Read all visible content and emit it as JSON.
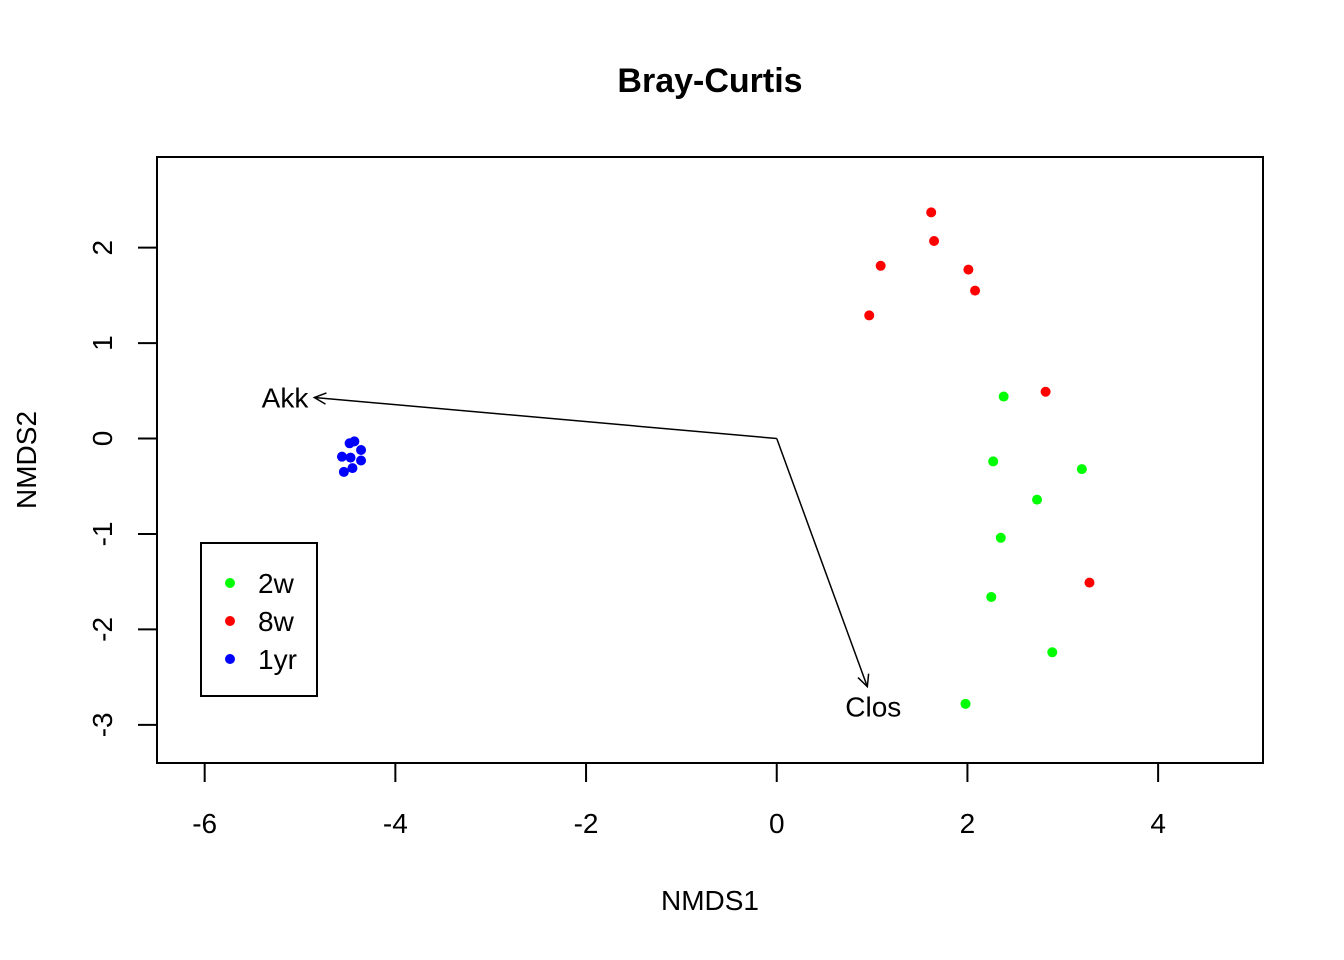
{
  "chart_data": {
    "type": "scatter",
    "title": "Bray-Curtis",
    "xlabel": "NMDS1",
    "ylabel": "NMDS2",
    "xlim": [
      -6.5,
      5.1
    ],
    "ylim": [
      -3.4,
      2.95
    ],
    "xticks": [
      -6,
      -4,
      -2,
      0,
      2,
      4
    ],
    "yticks": [
      -3,
      -2,
      -1,
      0,
      1,
      2
    ],
    "xtick_labels": [
      "-6",
      "-4",
      "-2",
      "0",
      "2",
      "4"
    ],
    "ytick_labels": [
      "-3",
      "-2",
      "-1",
      "0",
      "1",
      "2"
    ],
    "grid": false,
    "legend_position": "bottom-left",
    "series": [
      {
        "name": "2w",
        "color": "#00ff00",
        "points": [
          [
            2.38,
            0.44
          ],
          [
            2.27,
            -0.24
          ],
          [
            3.2,
            -0.32
          ],
          [
            2.73,
            -0.64
          ],
          [
            2.35,
            -1.04
          ],
          [
            2.25,
            -1.66
          ],
          [
            2.89,
            -2.24
          ],
          [
            1.98,
            -2.78
          ]
        ]
      },
      {
        "name": "8w",
        "color": "#ff0000",
        "points": [
          [
            1.62,
            2.37
          ],
          [
            1.65,
            2.07
          ],
          [
            1.09,
            1.81
          ],
          [
            2.01,
            1.77
          ],
          [
            2.08,
            1.55
          ],
          [
            0.97,
            1.29
          ],
          [
            2.82,
            0.49
          ],
          [
            3.28,
            -1.51
          ]
        ]
      },
      {
        "name": "1yr",
        "color": "#0000ff",
        "points": [
          [
            -4.43,
            -0.03
          ],
          [
            -4.48,
            -0.05
          ],
          [
            -4.36,
            -0.12
          ],
          [
            -4.56,
            -0.19
          ],
          [
            -4.47,
            -0.2
          ],
          [
            -4.36,
            -0.23
          ],
          [
            -4.45,
            -0.31
          ],
          [
            -4.54,
            -0.35
          ]
        ]
      }
    ],
    "vectors": [
      {
        "label": "Akk",
        "from": [
          0,
          0
        ],
        "to": [
          -4.85,
          0.43
        ]
      },
      {
        "label": "Clos",
        "from": [
          0,
          0
        ],
        "to": [
          0.95,
          -2.6
        ]
      }
    ]
  }
}
